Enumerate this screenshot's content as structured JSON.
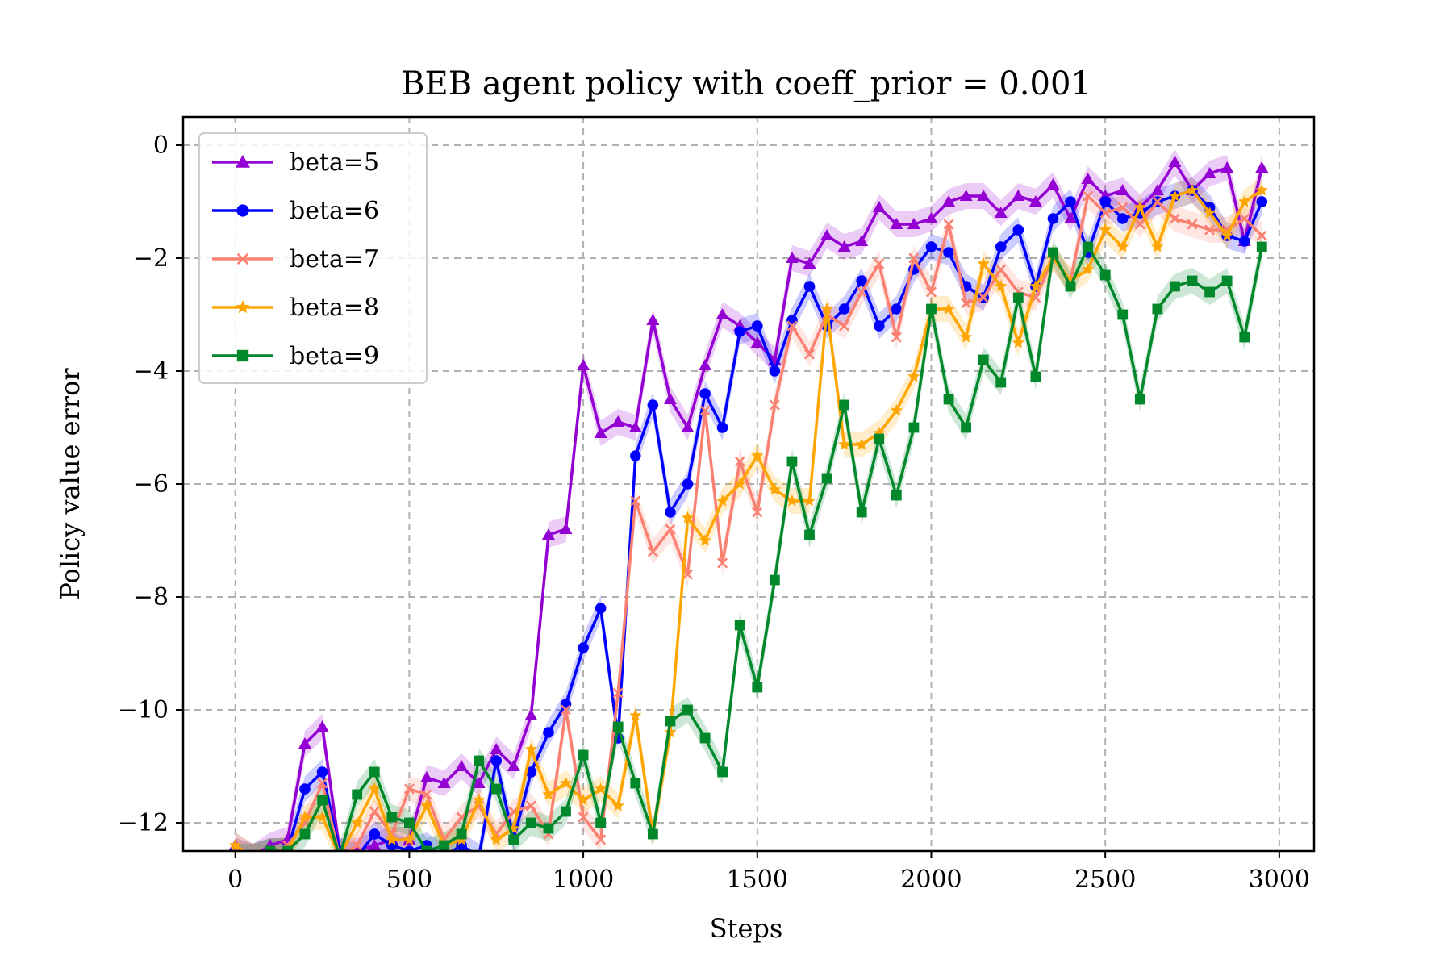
{
  "chart_data": {
    "type": "line",
    "title": "BEB agent policy with coeff_prior = 0.001",
    "xlabel": "Steps",
    "ylabel": "Policy value error",
    "xlim": [
      -150,
      3100
    ],
    "ylim": [
      -12.5,
      0.5
    ],
    "xticks": [
      0,
      500,
      1000,
      1500,
      2000,
      2500,
      3000
    ],
    "yticks": [
      0,
      -2,
      -4,
      -6,
      -8,
      -10,
      -12
    ],
    "xtick_labels": [
      "0",
      "500",
      "1000",
      "1500",
      "2000",
      "2500",
      "3000"
    ],
    "ytick_labels": [
      "0",
      "−2",
      "−4",
      "−6",
      "−8",
      "−10",
      "−12"
    ],
    "grid": true,
    "legend_position": "upper left",
    "x": [
      0,
      50,
      100,
      150,
      200,
      250,
      300,
      350,
      400,
      450,
      500,
      550,
      600,
      650,
      700,
      750,
      800,
      850,
      900,
      950,
      1000,
      1050,
      1100,
      1150,
      1200,
      1250,
      1300,
      1350,
      1400,
      1450,
      1500,
      1550,
      1600,
      1650,
      1700,
      1750,
      1800,
      1850,
      1900,
      1950,
      2000,
      2050,
      2100,
      2150,
      2200,
      2250,
      2300,
      2350,
      2400,
      2450,
      2500,
      2550,
      2600,
      2650,
      2700,
      2750,
      2800,
      2850,
      2900,
      2950
    ],
    "series": [
      {
        "name": "beta=5",
        "color": "#9400D3",
        "marker": "triangle",
        "values": [
          -12.4,
          -12.6,
          -12.4,
          -12.3,
          -10.6,
          -10.3,
          -12.5,
          -12.5,
          -12.4,
          -12.3,
          -12.3,
          -11.2,
          -11.3,
          -11,
          -11.3,
          -10.7,
          -11,
          -10.1,
          -6.9,
          -6.8,
          -3.9,
          -5.1,
          -4.9,
          -5,
          -3.1,
          -4.5,
          -5,
          -3.9,
          -3.0,
          -3.2,
          -3.5,
          -3.8,
          -2.0,
          -2.1,
          -1.6,
          -1.8,
          -1.7,
          -1.1,
          -1.4,
          -1.4,
          -1.3,
          -1.0,
          -0.9,
          -0.9,
          -1.2,
          -0.9,
          -1.0,
          -0.7,
          -1.3,
          -0.6,
          -0.9,
          -0.8,
          -1.1,
          -0.8,
          -0.3,
          -0.8,
          -0.5,
          -0.4,
          -1.7,
          -0.4
        ]
      },
      {
        "name": "beta=6",
        "color": "#0000FF",
        "marker": "circle",
        "values": [
          -12.5,
          -12.6,
          -12.5,
          -12.5,
          -11.4,
          -11.1,
          -12.5,
          -12.6,
          -12.2,
          -12.4,
          -12.5,
          -12.4,
          -12.6,
          -12.4,
          -12.6,
          -10.9,
          -12.3,
          -11.1,
          -10.4,
          -9.9,
          -8.9,
          -8.2,
          -10.5,
          -5.5,
          -4.6,
          -6.5,
          -6.0,
          -4.4,
          -5.0,
          -3.3,
          -3.2,
          -4.0,
          -3.1,
          -2.5,
          -3.2,
          -2.9,
          -2.4,
          -3.2,
          -2.9,
          -2.2,
          -1.8,
          -1.9,
          -2.5,
          -2.7,
          -1.8,
          -1.5,
          -2.5,
          -1.3,
          -1.0,
          -1.9,
          -1.0,
          -1.3,
          -1.2,
          -1.0,
          -0.9,
          -0.8,
          -1.1,
          -1.6,
          -1.7,
          -1.0
        ]
      },
      {
        "name": "beta=7",
        "color": "#FA8072",
        "marker": "x",
        "values": [
          -12.5,
          -12.6,
          -12.6,
          -12.4,
          -12.0,
          -11.3,
          -12.6,
          -12.4,
          -11.8,
          -12.2,
          -11.4,
          -11.5,
          -12.3,
          -11.9,
          -11.7,
          -12.2,
          -11.8,
          -11.7,
          -12.2,
          -10.0,
          -11.9,
          -12.3,
          -9.7,
          -6.3,
          -7.2,
          -6.8,
          -7.6,
          -4.7,
          -7.4,
          -5.6,
          -6.5,
          -4.6,
          -3.2,
          -3.7,
          -3.0,
          -3.2,
          -2.6,
          -2.1,
          -3.4,
          -2.0,
          -2.6,
          -1.4,
          -2.8,
          -2.7,
          -2.2,
          -2.6,
          -2.7,
          -2.0,
          -2.4,
          -0.9,
          -1.2,
          -1.1,
          -1.4,
          -1.0,
          -1.3,
          -1.4,
          -1.5,
          -1.5,
          -1.3,
          -1.6
        ]
      },
      {
        "name": "beta=8",
        "color": "#FFA500",
        "marker": "star",
        "values": [
          -12.4,
          -12.6,
          -12.5,
          -12.5,
          -11.9,
          -11.9,
          -12.6,
          -12.0,
          -11.4,
          -12.3,
          -12.3,
          -11.7,
          -12.4,
          -12.3,
          -11.6,
          -12.3,
          -12.1,
          -10.7,
          -11.5,
          -11.3,
          -11.6,
          -11.4,
          -11.7,
          -10.1,
          -12.2,
          -10.4,
          -6.6,
          -7.0,
          -6.3,
          -6.0,
          -5.5,
          -6.1,
          -6.3,
          -6.3,
          -2.9,
          -5.3,
          -5.3,
          -5.1,
          -4.7,
          -4.1,
          -2.9,
          -2.9,
          -3.4,
          -2.1,
          -2.5,
          -3.5,
          -2.5,
          -2.0,
          -2.4,
          -2.2,
          -1.5,
          -1.8,
          -1.1,
          -1.8,
          -0.9,
          -0.8,
          -1.2,
          -1.6,
          -1.0,
          -0.8
        ]
      },
      {
        "name": "beta=9",
        "color": "#00882B",
        "marker": "square",
        "values": [
          -12.6,
          -12.6,
          -12.5,
          -12.5,
          -12.2,
          -11.6,
          -12.6,
          -11.5,
          -11.1,
          -11.9,
          -12.0,
          -12.5,
          -12.4,
          -12.2,
          -10.9,
          -11.4,
          -12.3,
          -12.0,
          -12.1,
          -11.8,
          -10.8,
          -12.0,
          -10.3,
          -11.3,
          -12.2,
          -10.2,
          -10.0,
          -10.5,
          -11.1,
          -8.5,
          -9.6,
          -7.7,
          -5.6,
          -6.9,
          -5.9,
          -4.6,
          -6.5,
          -5.2,
          -6.2,
          -5.0,
          -2.9,
          -4.5,
          -5.0,
          -3.8,
          -4.2,
          -2.7,
          -4.1,
          -1.9,
          -2.5,
          -1.8,
          -2.3,
          -3.0,
          -4.5,
          -2.9,
          -2.5,
          -2.4,
          -2.6,
          -2.4,
          -3.4,
          -1.8
        ]
      }
    ]
  }
}
